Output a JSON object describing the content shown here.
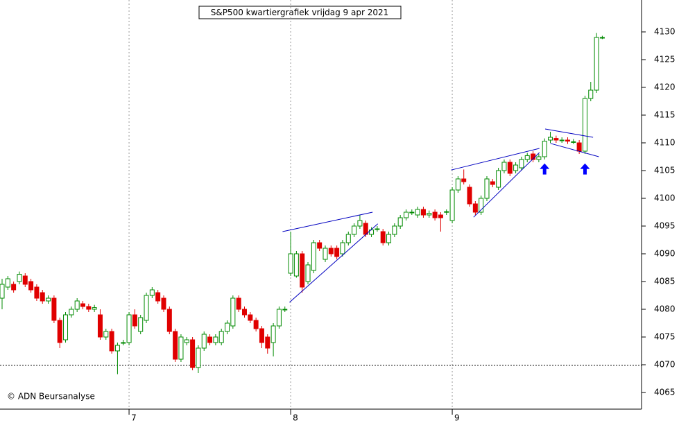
{
  "chart_data": {
    "type": "candlestick",
    "title": "S&P500 kwartiergrafiek vrijdag 9 apr 2021",
    "credit": "© ADN Beursanalyse",
    "up_color": "#008a00",
    "down_color": "#e00000",
    "line_color": "#0000c0",
    "arrow_color": "#0000ff",
    "xlim": [
      -0.36,
      110.8
    ],
    "xticks": [
      {
        "value": 22,
        "label": "7"
      },
      {
        "value": 50,
        "label": "8"
      },
      {
        "value": 78,
        "label": "9"
      }
    ],
    "ylim": [
      4062,
      4135.75
    ],
    "yticks": [
      4065,
      4070,
      4075,
      4080,
      4085,
      4090,
      4095,
      4100,
      4105,
      4110,
      4115,
      4120,
      4125,
      4130
    ],
    "hline": 4069.9,
    "open": [
      4082,
      4084,
      4084.5,
      4085,
      4086,
      4085,
      4084,
      4083,
      4081.5,
      4082,
      4078,
      4074.5,
      4079,
      4080,
      4081,
      4080.5,
      4080,
      4079,
      4075,
      4076,
      4072.5,
      4074,
      4074,
      4079,
      4076,
      4078,
      4082.5,
      4083,
      4082,
      4080,
      4076,
      4071,
      4074,
      4074.5,
      4069.5,
      4073,
      4075,
      4074,
      4074,
      4076,
      4077,
      4082,
      4080,
      4079,
      4078,
      4076.5,
      4075,
      4074,
      4077,
      4080,
      4086.5,
      4086,
      4090,
      4085,
      4087,
      4092,
      4089,
      4091,
      4091,
      4090,
      4092,
      4093.5,
      4095,
      4095.5,
      4093.5,
      4094.5,
      4094,
      4092,
      4093.5,
      4095,
      4096.5,
      4097.5,
      4097,
      4098,
      4097,
      4097.5,
      4097,
      4097.6,
      4096,
      4101.5,
      4103.5,
      4102,
      4099,
      4097.5,
      4100,
      4103,
      4102,
      4105,
      4106.5,
      4105,
      4105.5,
      4107,
      4108,
      4107,
      4107.5,
      4110.5,
      4110.8,
      4110.5,
      4110.5,
      4110.2,
      4110,
      4108.5,
      4118,
      4119.5,
      4129
    ],
    "high": [
      4085.5,
      4086,
      4085,
      4086.8,
      4086.5,
      4085.5,
      4084.5,
      4083.5,
      4082.5,
      4082.5,
      4078.5,
      4079.5,
      4080.5,
      4082,
      4081.5,
      4081,
      4080.8,
      4080,
      4076.5,
      4076.5,
      4074,
      4074.5,
      4079.5,
      4080,
      4079,
      4083,
      4084,
      4083.5,
      4082.5,
      4080.5,
      4076.5,
      4075.5,
      4075,
      4075,
      4073.5,
      4076,
      4075.5,
      4075.5,
      4076.5,
      4078,
      4082.5,
      4082.5,
      4080.5,
      4079.5,
      4078.5,
      4077,
      4075.5,
      4077.5,
      4080.5,
      4080.5,
      4094,
      4090.5,
      4090.5,
      4088.5,
      4092.5,
      4092.5,
      4091.5,
      4091.5,
      4091.5,
      4092.5,
      4094,
      4095.5,
      4097,
      4096,
      4094.8,
      4095,
      4094.5,
      4094,
      4095.5,
      4097,
      4098,
      4098,
      4098.5,
      4098.5,
      4097.8,
      4098,
      4097.5,
      4098,
      4102,
      4104,
      4105.2,
      4102.5,
      4099.5,
      4100.5,
      4104,
      4103.5,
      4105.5,
      4107,
      4107,
      4106.5,
      4107.5,
      4108.2,
      4108.5,
      4108,
      4110.8,
      4112,
      4111.3,
      4111,
      4111,
      4110.7,
      4110.5,
      4118.5,
      4121,
      4129.8,
      4129.3
    ],
    "low": [
      4080,
      4083.5,
      4083,
      4084.5,
      4084,
      4083,
      4081.5,
      4081,
      4081,
      4077.5,
      4073,
      4074,
      4078.5,
      4079.5,
      4080,
      4079.5,
      4079.5,
      4074.5,
      4074.5,
      4072,
      4068.3,
      4073.5,
      4073.5,
      4076.5,
      4075.5,
      4077.5,
      4082,
      4081,
      4079.5,
      4075.5,
      4070.5,
      4070.5,
      4073.5,
      4069,
      4068.5,
      4072.5,
      4073.5,
      4073.5,
      4073.5,
      4075.5,
      4076.5,
      4079.5,
      4078.5,
      4077.5,
      4076,
      4073,
      4072,
      4071.5,
      4076.5,
      4079.5,
      4086,
      4085.7,
      4083,
      4084.5,
      4086.5,
      4090.5,
      4088.5,
      4089.5,
      4089,
      4089.5,
      4091.5,
      4093,
      4094.5,
      4093,
      4093,
      4094,
      4091.5,
      4091.5,
      4093,
      4094.5,
      4096,
      4097,
      4096.5,
      4096.5,
      4096.5,
      4096,
      4094,
      4097,
      4095.5,
      4101,
      4102.5,
      4098.5,
      4097,
      4097,
      4099.5,
      4102,
      4101.5,
      4104.5,
      4104,
      4104.5,
      4105,
      4106.5,
      4106.5,
      4106.5,
      4107,
      4110,
      4110,
      4110,
      4109.8,
      4109.8,
      4108,
      4108,
      4117.5,
      4119,
      4128.7
    ],
    "close": [
      4084.5,
      4085.5,
      4083.5,
      4086.3,
      4084.5,
      4083.5,
      4082,
      4081.5,
      4082,
      4078,
      4074,
      4079,
      4080,
      4081.5,
      4080.5,
      4080,
      4080.3,
      4075,
      4076,
      4072.5,
      4073.5,
      4074,
      4079,
      4077,
      4078.5,
      4082.5,
      4083.5,
      4081.5,
      4080,
      4076,
      4071,
      4075,
      4074.5,
      4069.5,
      4073,
      4075.5,
      4074,
      4075,
      4076,
      4077.5,
      4082,
      4080,
      4079,
      4078,
      4076.5,
      4074,
      4073,
      4077,
      4080,
      4080,
      4090,
      4090,
      4084,
      4088,
      4092,
      4091,
      4091,
      4090,
      4089.5,
      4092,
      4093.5,
      4095,
      4096,
      4093.5,
      4094.3,
      4094.5,
      4092,
      4093.5,
      4095,
      4096.5,
      4097.5,
      4097.5,
      4098,
      4097,
      4097.3,
      4096.5,
      4096.5,
      4097.6,
      4101.5,
      4103.5,
      4103,
      4099,
      4097.5,
      4100,
      4103.5,
      4102.5,
      4105,
      4106.5,
      4104.5,
      4106,
      4107,
      4107.7,
      4107,
      4107.5,
      4110.3,
      4111,
      4110.5,
      4110.5,
      4110.3,
      4110.2,
      4108.5,
      4118,
      4119.5,
      4129,
      4129
    ],
    "trendlines": [
      [
        48.6,
        4094,
        64.2,
        4097.5
      ],
      [
        49.8,
        4081.25,
        65.1,
        4095.4
      ],
      [
        77.8,
        4105.1,
        93.1,
        4109
      ],
      [
        81.7,
        4096.6,
        93.1,
        4108.25
      ],
      [
        94.1,
        4112.5,
        102.4,
        4111
      ],
      [
        95,
        4109.9,
        103.4,
        4107.5
      ]
    ],
    "arrows": [
      [
        94,
        4106.3
      ],
      [
        101,
        4106.3
      ]
    ]
  }
}
